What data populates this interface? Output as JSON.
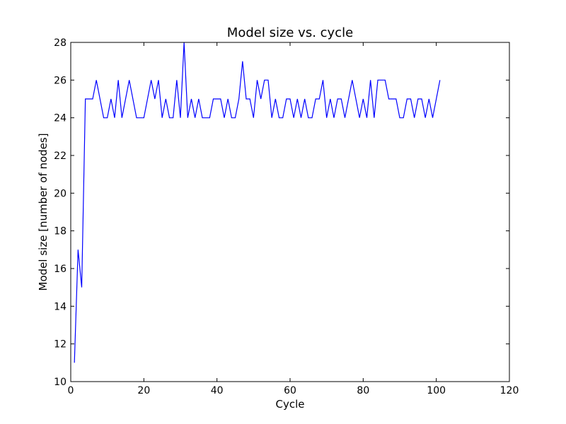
{
  "chart_data": {
    "type": "line",
    "title": "Model size vs. cycle",
    "xlabel": "Cycle",
    "ylabel": "Model size [number of nodes]",
    "xlim": [
      0,
      120
    ],
    "ylim": [
      10,
      28
    ],
    "xticks": [
      "0",
      "20",
      "40",
      "60",
      "80",
      "100",
      "120"
    ],
    "yticks": [
      "10",
      "12",
      "14",
      "16",
      "18",
      "20",
      "22",
      "24",
      "26",
      "28"
    ],
    "grid": false,
    "legend": "none",
    "line_color": "#0000ff",
    "series": [
      {
        "x": [
          1,
          2,
          3,
          4,
          5,
          6,
          7,
          8,
          9,
          10,
          11,
          12,
          13,
          14,
          15,
          16,
          17,
          18,
          19,
          20,
          21,
          22,
          23,
          24,
          25,
          26,
          27,
          28,
          29,
          30,
          31,
          32,
          33,
          34,
          35,
          36,
          37,
          38,
          39,
          40,
          41,
          42,
          43,
          44,
          45,
          46,
          47,
          48,
          49,
          50,
          51,
          52,
          53,
          54,
          55,
          56,
          57,
          58,
          59,
          60,
          61,
          62,
          63,
          64,
          65,
          66,
          67,
          68,
          69,
          70,
          71,
          72,
          73,
          74,
          75,
          76,
          77,
          78,
          79,
          80,
          81,
          82,
          83,
          84,
          85,
          86,
          87,
          88,
          89,
          90,
          91,
          92,
          93,
          94,
          95,
          96,
          97,
          98,
          99,
          100,
          101
        ],
        "values": [
          11,
          17,
          15,
          25,
          25,
          25,
          26,
          25,
          24,
          24,
          25,
          24,
          26,
          24,
          25,
          26,
          25,
          24,
          24,
          24,
          25,
          26,
          25,
          26,
          24,
          25,
          24,
          24,
          26,
          24,
          28,
          24,
          25,
          24,
          25,
          24,
          24,
          24,
          25,
          25,
          25,
          24,
          25,
          24,
          24,
          25,
          27,
          25,
          25,
          24,
          26,
          25,
          26,
          26,
          24,
          25,
          24,
          24,
          25,
          25,
          24,
          25,
          24,
          25,
          24,
          24,
          25,
          25,
          26,
          24,
          25,
          24,
          25,
          25,
          24,
          25,
          26,
          25,
          24,
          25,
          24,
          26,
          24,
          26,
          26,
          26,
          25,
          25,
          25,
          24,
          24,
          25,
          25,
          24,
          25,
          25,
          24,
          25,
          24,
          25,
          26
        ]
      }
    ]
  }
}
